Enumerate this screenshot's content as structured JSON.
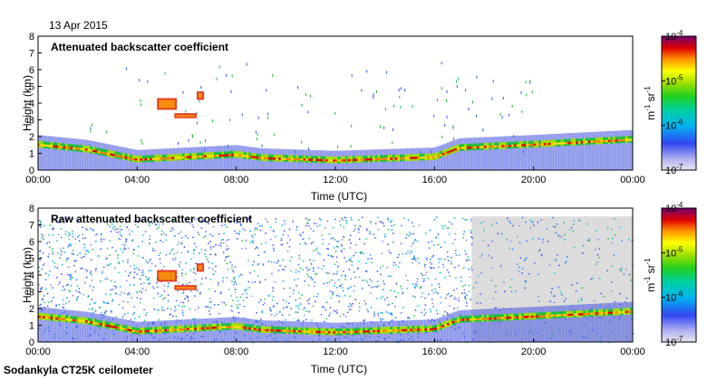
{
  "date": "13 Apr 2015",
  "footer": "Sodankyla CT25K ceilometer",
  "chart_data": [
    {
      "type": "heatmap",
      "title": "Attenuated backscatter coefficient",
      "xlabel": "Time (UTC)",
      "ylabel": "Height (km)",
      "x_ticks": [
        "00:00",
        "04:00",
        "08:00",
        "12:00",
        "16:00",
        "20:00",
        "00:00"
      ],
      "y_ticks": [
        "0",
        "1",
        "2",
        "3",
        "4",
        "5",
        "6",
        "7",
        "8"
      ],
      "xlim_hours": [
        0,
        24
      ],
      "ylim_km": [
        0,
        8
      ],
      "colorbar": {
        "unit_main": "m",
        "unit_exp1": "-1",
        "unit_mid": " sr",
        "unit_exp2": "-1",
        "labels": [
          {
            "base": "10",
            "exp": "-4"
          },
          {
            "base": "10",
            "exp": "-5"
          },
          {
            "base": "10",
            "exp": "-6"
          },
          {
            "base": "10",
            "exp": "-7"
          }
        ]
      },
      "cloud_layer_km": [
        [
          0,
          1.5
        ],
        [
          2,
          1.2
        ],
        [
          3,
          0.9
        ],
        [
          4,
          0.6
        ],
        [
          8,
          0.9
        ],
        [
          9,
          0.7
        ],
        [
          12,
          0.55
        ],
        [
          16,
          0.75
        ],
        [
          17,
          1.3
        ],
        [
          20,
          1.5
        ],
        [
          24,
          1.8
        ]
      ],
      "elevated_features": [
        {
          "hours": [
            4.8,
            5.6
          ],
          "height_km": [
            3.6,
            4.3
          ]
        },
        {
          "hours": [
            5.5,
            6.4
          ],
          "height_km": [
            3.1,
            3.4
          ]
        },
        {
          "hours": [
            6.4,
            6.7
          ],
          "height_km": [
            4.2,
            4.7
          ]
        }
      ]
    },
    {
      "type": "heatmap",
      "title": "Raw attenuated backscatter coefficient",
      "xlabel": "Time (UTC)",
      "ylabel": "Height (km)",
      "x_ticks": [
        "00:00",
        "04:00",
        "08:00",
        "12:00",
        "16:00",
        "20:00",
        "00:00"
      ],
      "y_ticks": [
        "0",
        "1",
        "2",
        "3",
        "4",
        "5",
        "6",
        "7",
        "8"
      ],
      "xlim_hours": [
        0,
        24
      ],
      "ylim_km": [
        0,
        8
      ],
      "colorbar": {
        "unit_main": "m",
        "unit_exp1": "-1",
        "unit_mid": " sr",
        "unit_exp2": "-1",
        "labels": [
          {
            "base": "10",
            "exp": "-4"
          },
          {
            "base": "10",
            "exp": "-5"
          },
          {
            "base": "10",
            "exp": "-6"
          },
          {
            "base": "10",
            "exp": "-7"
          }
        ]
      },
      "cloud_layer_km": [
        [
          0,
          1.5
        ],
        [
          2,
          1.2
        ],
        [
          3,
          0.9
        ],
        [
          4,
          0.6
        ],
        [
          8,
          0.9
        ],
        [
          9,
          0.7
        ],
        [
          12,
          0.55
        ],
        [
          16,
          0.75
        ],
        [
          17,
          1.3
        ],
        [
          20,
          1.5
        ],
        [
          24,
          1.8
        ]
      ],
      "elevated_features": [
        {
          "hours": [
            4.8,
            5.6
          ],
          "height_km": [
            3.6,
            4.3
          ]
        },
        {
          "hours": [
            5.5,
            6.4
          ],
          "height_km": [
            3.1,
            3.4
          ]
        },
        {
          "hours": [
            6.4,
            6.7
          ],
          "height_km": [
            4.2,
            4.7
          ]
        }
      ]
    }
  ]
}
